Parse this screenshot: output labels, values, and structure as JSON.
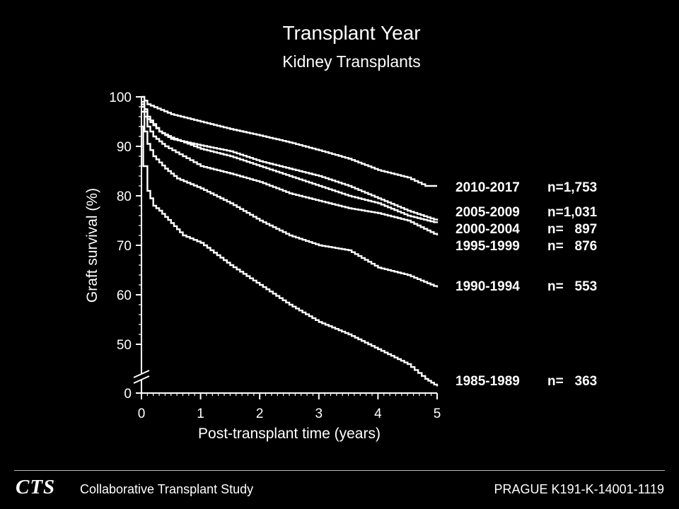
{
  "chart_data": {
    "type": "line",
    "title": "Transplant Year",
    "subtitle": "Kidney Transplants",
    "xlabel": "Post-transplant time (years)",
    "ylabel": "Graft survival (%)",
    "xlim": [
      0,
      5
    ],
    "x_ticks": [
      "0",
      "1",
      "2",
      "3",
      "4",
      "5"
    ],
    "y_ticks": [
      "100",
      "90",
      "80",
      "70",
      "60",
      "50",
      "0"
    ],
    "y_axis_break": true,
    "grid": false,
    "series": [
      {
        "name": "2010-2017",
        "n": "n=1,753",
        "x": [
          0,
          0.1,
          0.5,
          1,
          1.5,
          2,
          2.5,
          3,
          3.5,
          4,
          4.5,
          4.8,
          5
        ],
        "y": [
          100,
          98.5,
          96.5,
          95,
          93.5,
          92.2,
          90.8,
          89.2,
          87.5,
          85.2,
          83.7,
          82,
          82
        ]
      },
      {
        "name": "2005-2009",
        "n": "n=1,031",
        "x": [
          0,
          0.1,
          0.3,
          0.5,
          1,
          1.5,
          2,
          2.5,
          3,
          3.5,
          4,
          4.5,
          5
        ],
        "y": [
          99,
          96,
          93,
          91.5,
          90.2,
          89,
          87,
          85.5,
          84,
          82,
          79.5,
          77,
          75
        ]
      },
      {
        "name": "2000-2004",
        "n": "n=   897",
        "x": [
          0,
          0.1,
          0.3,
          0.5,
          1,
          1.5,
          2,
          2.5,
          3,
          3.5,
          4,
          4.5,
          5
        ],
        "y": [
          98.5,
          95.5,
          93,
          91.8,
          89.5,
          88,
          86,
          84,
          82,
          80,
          78.5,
          76,
          74.5
        ]
      },
      {
        "name": "1995-1999",
        "n": "n=   876",
        "x": [
          0,
          0.1,
          0.2,
          0.4,
          0.7,
          1,
          1.5,
          2,
          2.5,
          3,
          3.5,
          4,
          4.5,
          5
        ],
        "y": [
          98,
          94,
          92,
          90,
          88,
          86,
          84.5,
          82.8,
          80.5,
          79,
          77.5,
          76.5,
          75,
          72
        ]
      },
      {
        "name": "1990-1994",
        "n": "n=   553",
        "x": [
          0,
          0.05,
          0.1,
          0.2,
          0.4,
          0.6,
          1,
          1.5,
          2,
          2.5,
          3,
          3.5,
          4,
          4.5,
          5
        ],
        "y": [
          97,
          93,
          90.5,
          88,
          85.5,
          83.5,
          81.5,
          78.5,
          75,
          72,
          70,
          69,
          65.5,
          64,
          61.5
        ]
      },
      {
        "name": "1985-1989",
        "n": "n=   363",
        "x": [
          0,
          0.03,
          0.1,
          0.2,
          0.3,
          0.5,
          0.7,
          1,
          1.5,
          2,
          2.5,
          3,
          3.5,
          4,
          4.5,
          4.8,
          5
        ],
        "y": [
          94,
          86,
          81,
          78,
          77,
          74.5,
          72,
          70.5,
          66,
          62,
          58,
          54.5,
          52,
          49,
          46,
          43,
          41.5
        ]
      }
    ]
  },
  "footer": {
    "logo": "CTS",
    "study": "Collaborative Transplant Study",
    "reference": "PRAGUE  K191-K-14001-1119"
  }
}
